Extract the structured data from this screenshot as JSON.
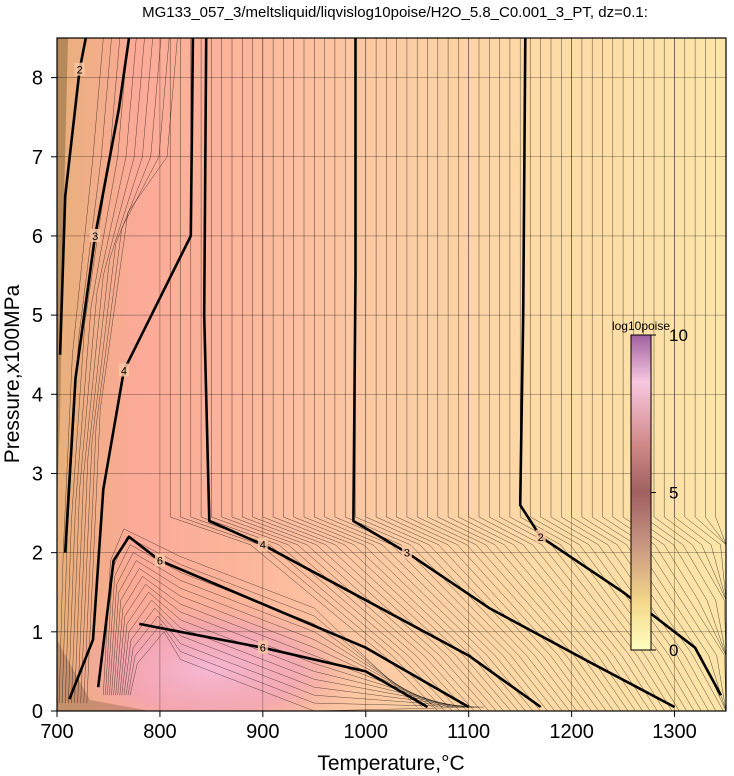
{
  "chart_data": {
    "type": "heatmap",
    "title": "MG133_057_3/meltsliquid/liqvislog10poise/H2O_5.8_C0.001_3_PT, dz=0.1:",
    "xlabel": "Temperature,°C",
    "ylabel": "Pressure,x100MPa",
    "xlim": [
      700,
      1350
    ],
    "ylim": [
      0,
      8.5
    ],
    "x_ticks": [
      "700",
      "800",
      "900",
      "1000",
      "1100",
      "1200",
      "1300"
    ],
    "y_ticks": [
      "0",
      "1",
      "2",
      "3",
      "4",
      "5",
      "6",
      "7",
      "8"
    ],
    "grid": true,
    "colorbar": {
      "title": "log10poise",
      "min": 0,
      "max": 10,
      "ticks": [
        "0",
        "5",
        "10"
      ],
      "placement": "right-inside"
    },
    "major_contours": [
      {
        "level": 2,
        "label": "2",
        "points": [
          [
            1155,
            8.5
          ],
          [
            1153,
            5.0
          ],
          [
            1150,
            2.6
          ],
          [
            1170,
            2.2
          ],
          [
            1250,
            1.5
          ],
          [
            1320,
            0.8
          ],
          [
            1345,
            0.2
          ]
        ]
      },
      {
        "level": 3,
        "label": "3",
        "points": [
          [
            990,
            8.5
          ],
          [
            990,
            5.5
          ],
          [
            988,
            2.4
          ],
          [
            1040,
            2.0
          ],
          [
            1120,
            1.3
          ],
          [
            1220,
            0.6
          ],
          [
            1300,
            0.05
          ]
        ]
      },
      {
        "level": 4,
        "label": "4",
        "points": [
          [
            845,
            8.5
          ],
          [
            843,
            5.0
          ],
          [
            848,
            2.4
          ],
          [
            900,
            2.1
          ],
          [
            1000,
            1.4
          ],
          [
            1100,
            0.7
          ],
          [
            1170,
            0.05
          ]
        ]
      },
      {
        "level": 6,
        "label": "6",
        "points": [
          [
            780,
            1.1
          ],
          [
            800,
            1.05
          ],
          [
            900,
            0.8
          ],
          [
            1000,
            0.5
          ],
          [
            1060,
            0.05
          ]
        ]
      },
      {
        "level": 6,
        "label": "6",
        "points": [
          [
            740,
            0.3
          ],
          [
            755,
            1.9
          ],
          [
            770,
            2.2
          ],
          [
            800,
            1.9
          ],
          [
            900,
            1.35
          ],
          [
            1000,
            0.8
          ],
          [
            1100,
            0.05
          ]
        ]
      },
      {
        "level": 4,
        "label": "4",
        "points": [
          [
            712,
            0.15
          ],
          [
            735,
            0.9
          ],
          [
            745,
            2.8
          ],
          [
            765,
            4.3
          ],
          [
            830,
            6.0
          ],
          [
            832,
            8.5
          ]
        ]
      },
      {
        "level": 3,
        "label": "3",
        "points": [
          [
            708,
            2.0
          ],
          [
            718,
            4.2
          ],
          [
            737,
            6.0
          ],
          [
            760,
            7.6
          ],
          [
            770,
            8.5
          ]
        ]
      },
      {
        "level": 2,
        "label": "2",
        "points": [
          [
            703,
            4.5
          ],
          [
            708,
            6.5
          ],
          [
            722,
            8.1
          ],
          [
            728,
            8.5
          ]
        ]
      }
    ],
    "contour_labels": [
      "2",
      "2",
      "3",
      "3",
      "4",
      "4",
      "4",
      "6",
      "6",
      "6",
      "6"
    ]
  }
}
